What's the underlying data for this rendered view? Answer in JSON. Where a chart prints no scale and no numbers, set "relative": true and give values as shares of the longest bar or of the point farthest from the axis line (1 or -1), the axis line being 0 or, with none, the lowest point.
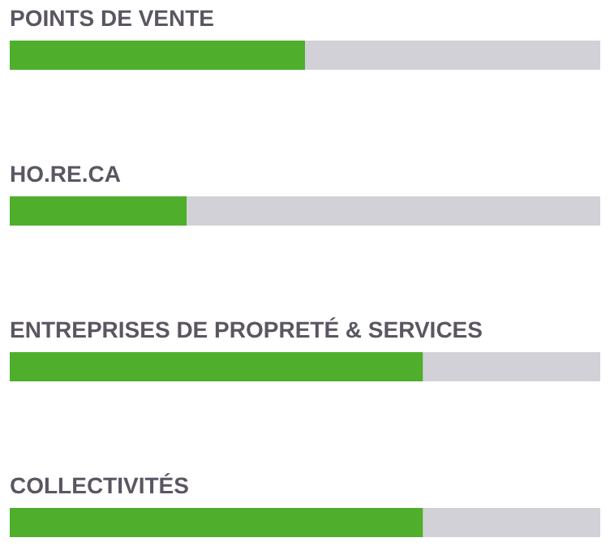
{
  "chart_data": {
    "type": "bar",
    "orientation": "horizontal",
    "relative": true,
    "stacked": true,
    "legend": false,
    "categories": [
      "POINTS DE VENTE",
      "HO.RE.CA",
      "ENTREPRISES DE PROPRETÉ & SERVICES",
      "COLLECTIVITÉS"
    ],
    "series": [
      {
        "color": "#4fae2c",
        "values": [
          0.5,
          0.3,
          0.7,
          0.7
        ]
      },
      {
        "color": "#d2d1d8",
        "values": [
          0.5,
          0.7,
          0.3,
          0.3
        ]
      }
    ]
  }
}
